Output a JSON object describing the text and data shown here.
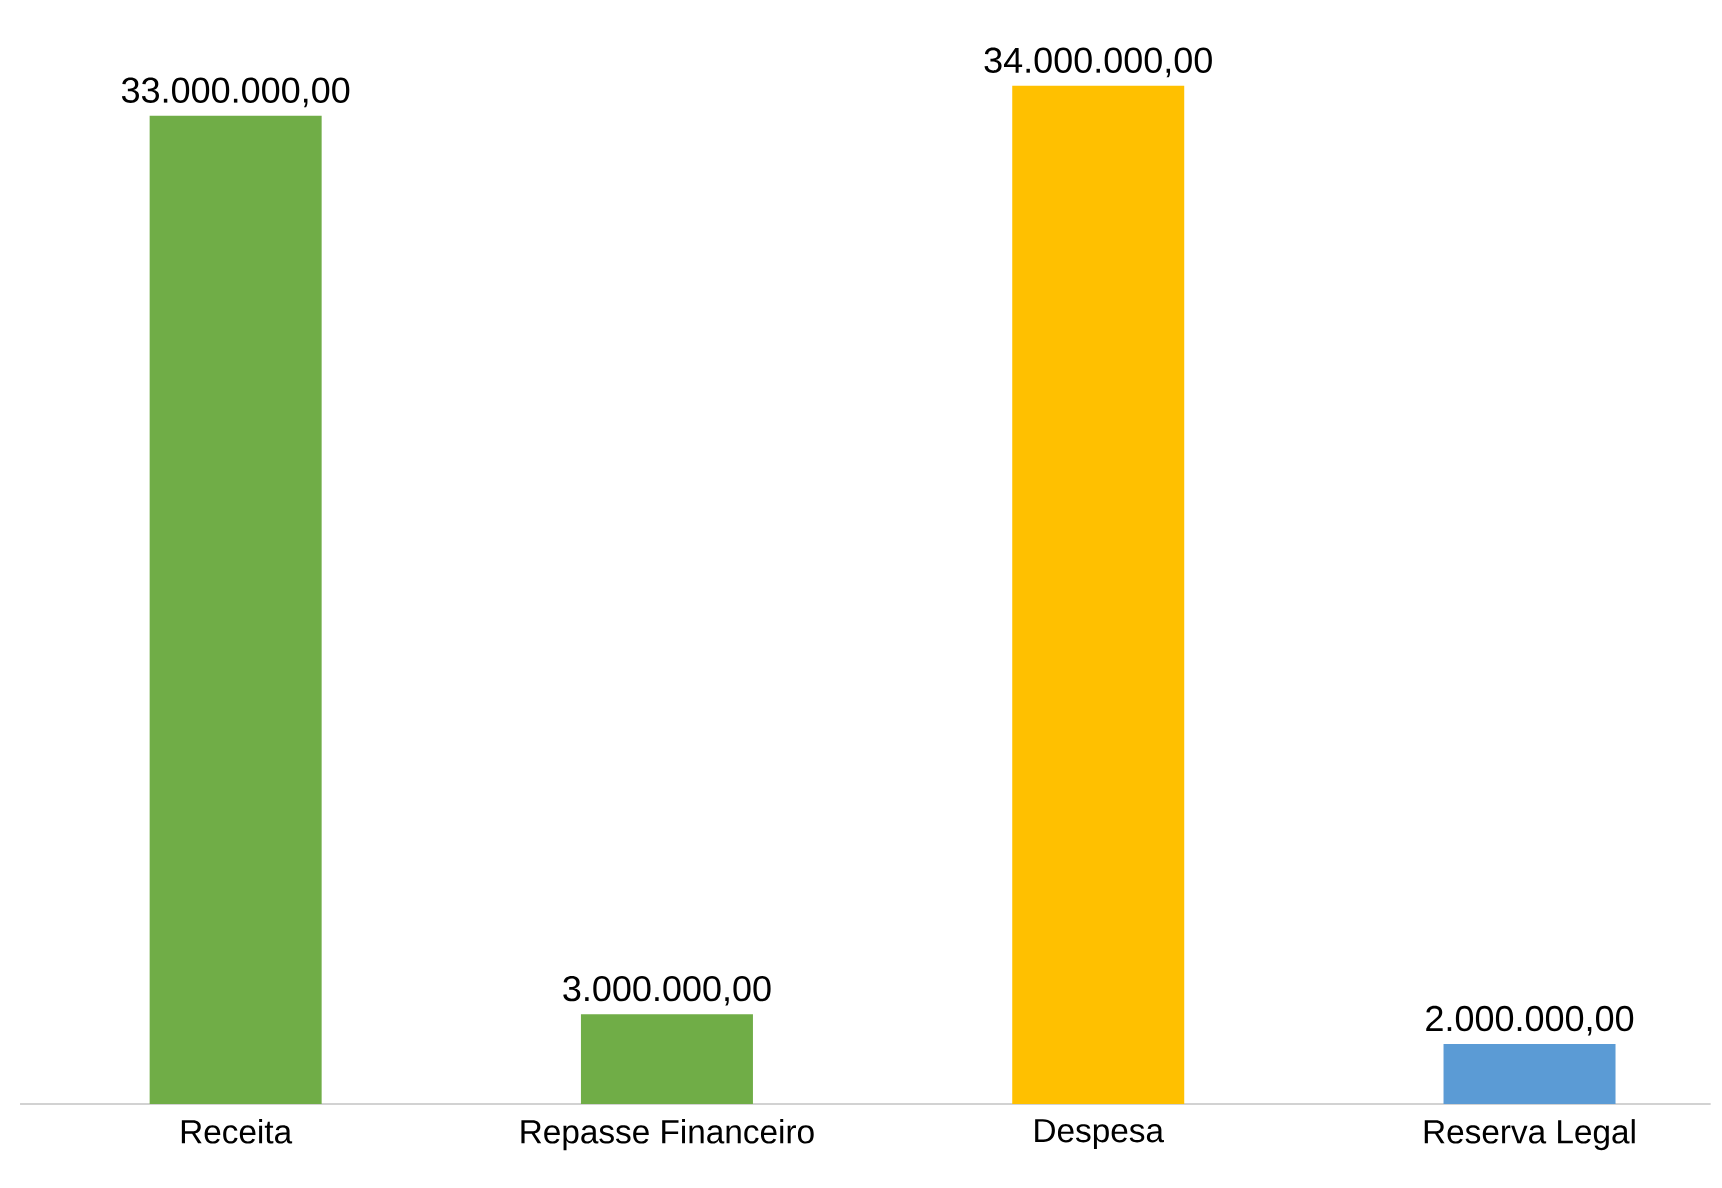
{
  "chart_data": {
    "type": "bar",
    "categories": [
      "Receita",
      "Repasse Financeiro",
      "Despesa",
      "Reserva Legal"
    ],
    "values": [
      33000000,
      3000000,
      34000000,
      2000000
    ],
    "colors": [
      "#70ad47",
      "#70ad47",
      "#ffc000",
      "#5b9bd5"
    ],
    "value_labels": [
      "33.000.000,00",
      "3.000.000,00",
      "34.000.000,00",
      "2.000.000,00"
    ]
  }
}
